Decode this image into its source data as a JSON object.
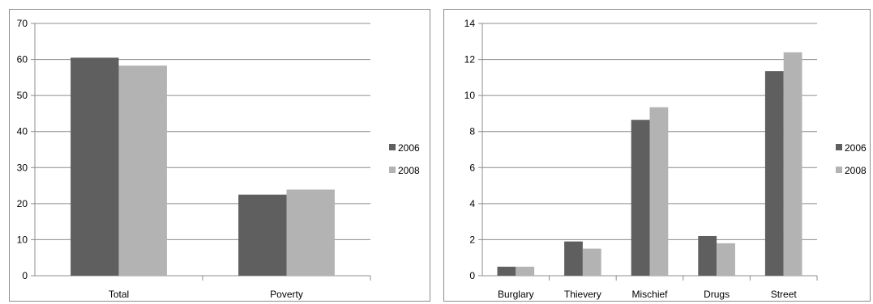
{
  "colors": {
    "s2006": "#5f5f5f",
    "s2008": "#b3b3b3",
    "grid": "#8c8c8c"
  },
  "chart_data": [
    {
      "type": "bar",
      "title": "",
      "xlabel": "",
      "ylabel": "",
      "categories": [
        "Total",
        "Poverty"
      ],
      "series": [
        {
          "name": "2006",
          "values": [
            60.5,
            22.5
          ]
        },
        {
          "name": "2008",
          "values": [
            58.3,
            23.9
          ]
        }
      ],
      "ylim": [
        0,
        70
      ],
      "yticks": [
        "0",
        "10",
        "20",
        "30",
        "40",
        "50",
        "60",
        "70"
      ],
      "grid": true,
      "legend": "right"
    },
    {
      "type": "bar",
      "title": "",
      "xlabel": "",
      "ylabel": "",
      "categories": [
        "Burglary",
        "Thievery",
        "Mischief",
        "Drugs",
        "Street"
      ],
      "series": [
        {
          "name": "2006",
          "values": [
            0.5,
            1.9,
            8.65,
            2.2,
            11.35
          ]
        },
        {
          "name": "2008",
          "values": [
            0.5,
            1.5,
            9.35,
            1.8,
            12.4
          ]
        }
      ],
      "ylim": [
        0,
        14
      ],
      "yticks": [
        "0",
        "2",
        "4",
        "6",
        "8",
        "10",
        "12",
        "14"
      ],
      "grid": true,
      "legend": "right"
    }
  ]
}
